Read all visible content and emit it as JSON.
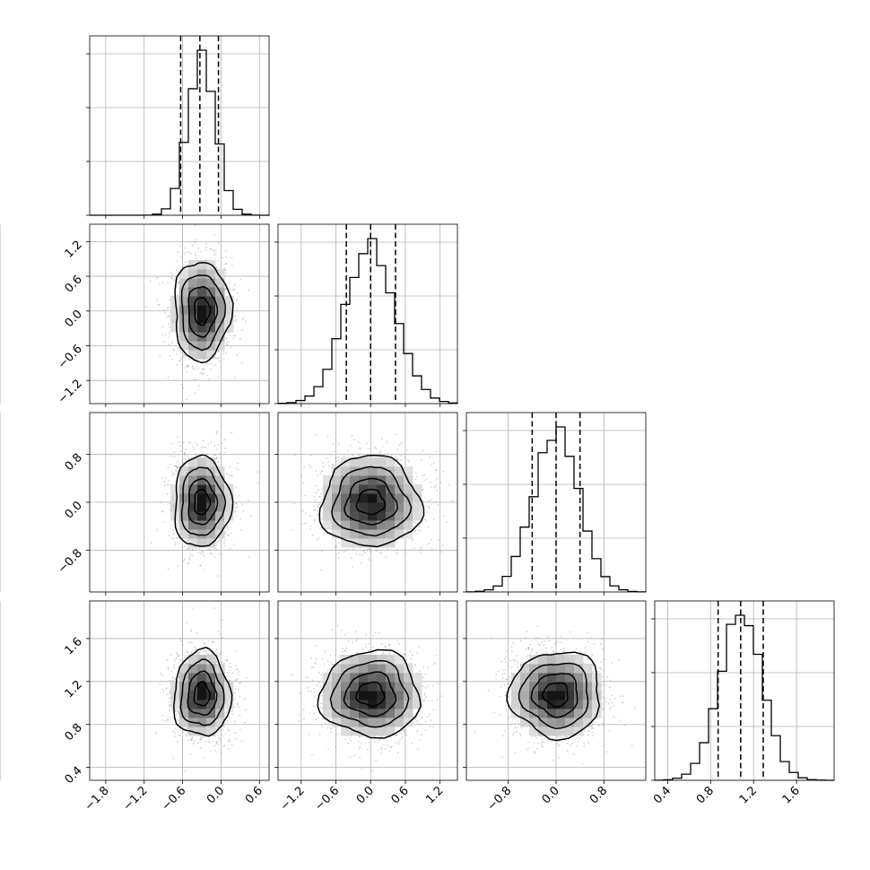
{
  "chart_data": {
    "type": "corner",
    "n_params": 4,
    "params": [
      {
        "center": -0.3,
        "std": 0.22,
        "range": [
          -2.05,
          0.75
        ],
        "xticks": [
          -1.8,
          -1.2,
          -0.6,
          0.0,
          0.6
        ],
        "xticklabels": [
          "−1.8",
          "−1.2",
          "−0.6",
          "0.0",
          "0.6"
        ],
        "yticks": [],
        "yticklabels": [],
        "quantiles": [
          -0.63,
          -0.33,
          -0.04
        ]
      },
      {
        "center": 0.0,
        "std": 0.43,
        "range": [
          -1.6,
          1.5
        ],
        "xticks": [
          -1.2,
          -0.6,
          0.0,
          0.6,
          1.2
        ],
        "xticklabels": [
          "−1.2",
          "−0.6",
          "0.0",
          "0.6",
          "1.2"
        ],
        "yticks": [
          -1.2,
          -0.6,
          0.0,
          0.6,
          1.2
        ],
        "yticklabels": [
          "−1.2",
          "−0.6",
          "0.0",
          "0.6",
          "1.2"
        ],
        "quantiles": [
          -0.42,
          0.0,
          0.43
        ]
      },
      {
        "center": 0.0,
        "std": 0.38,
        "range": [
          -1.5,
          1.5
        ],
        "xticks": [
          -0.8,
          0.0,
          0.8
        ],
        "xticklabels": [
          "−0.8",
          "0.0",
          "0.8"
        ],
        "yticks": [
          -0.8,
          0.0,
          0.8
        ],
        "yticklabels": [
          "−0.8",
          "0.0",
          "0.8"
        ],
        "quantiles": [
          -0.4,
          0.0,
          0.4
        ]
      },
      {
        "center": 1.08,
        "std": 0.2,
        "range": [
          0.28,
          1.95
        ],
        "xticks": [
          0.4,
          0.8,
          1.2,
          1.6
        ],
        "xticklabels": [
          "0.4",
          "0.8",
          "1.2",
          "1.6"
        ],
        "yticks": [
          0.4,
          0.8,
          1.2,
          1.6
        ],
        "yticklabels": [
          "0.4",
          "0.8",
          "1.2",
          "1.6"
        ],
        "quantiles": [
          0.87,
          1.08,
          1.29
        ]
      }
    ],
    "grid": true,
    "points_per_panel": 1400,
    "histogram_bins": 20,
    "density_bins": 20,
    "contour_levels": [
      "0.5",
      "1.0",
      "1.5",
      "2.0"
    ],
    "colors": {
      "line": "#000000",
      "points": "#808080",
      "grid": "#b0b0b0",
      "density_max": "#000000"
    }
  }
}
